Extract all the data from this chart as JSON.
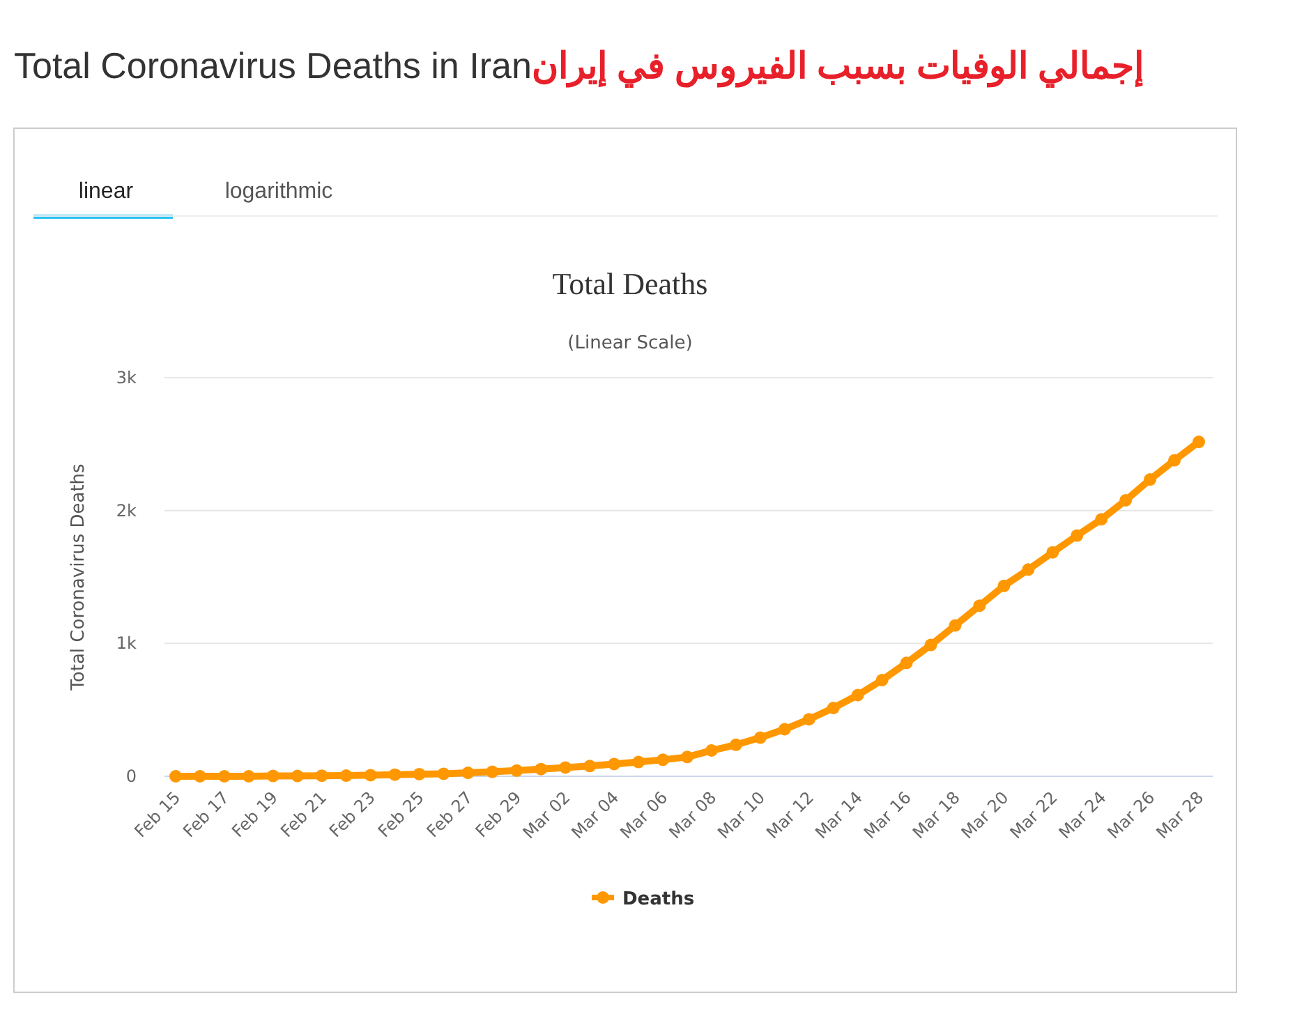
{
  "chart_data": {
    "type": "line",
    "title": "Total Deaths",
    "subtitle": "(Linear Scale)",
    "ylabel": "Total Coronavirus Deaths",
    "annotations": [
      "Total Coronavirus Deaths in Iran",
      "إجمالي الوفيات بسبب الفيروس في إيران",
      "linear",
      "logarithmic"
    ],
    "categories": [
      "Feb 15",
      null,
      "Feb 17",
      null,
      "Feb 19",
      null,
      "Feb 21",
      null,
      "Feb 23",
      null,
      "Feb 25",
      null,
      "Feb 27",
      null,
      "Feb 29",
      null,
      "Mar 02",
      null,
      "Mar 04",
      null,
      "Mar 06",
      null,
      "Mar 08",
      null,
      "Mar 10",
      null,
      "Mar 12",
      null,
      "Mar 14",
      null,
      "Mar 16",
      null,
      "Mar 18",
      null,
      "Mar 20",
      null,
      "Mar 22",
      null,
      "Mar 24",
      null,
      "Mar 26",
      null,
      "Mar 28"
    ],
    "series": [
      {
        "name": "Deaths",
        "color": "#ff9800",
        "values": [
          0,
          0,
          0,
          0,
          2,
          2,
          4,
          5,
          8,
          12,
          16,
          19,
          26,
          34,
          43,
          54,
          66,
          77,
          92,
          107,
          124,
          145,
          194,
          237,
          291,
          354,
          429,
          514,
          611,
          724,
          853,
          988,
          1135,
          1284,
          1433,
          1556,
          1685,
          1812,
          1934,
          2077,
          2234,
          2378,
          2517
        ]
      }
    ],
    "ylim": [
      0,
      3000
    ],
    "yticks": [
      {
        "value": 0,
        "label": "0"
      },
      {
        "value": 1000,
        "label": "1k"
      },
      {
        "value": 2000,
        "label": "2k"
      },
      {
        "value": 3000,
        "label": "3k"
      }
    ],
    "grid": "y",
    "legend": "bottom",
    "marker": "circle",
    "line_style": "solid"
  }
}
